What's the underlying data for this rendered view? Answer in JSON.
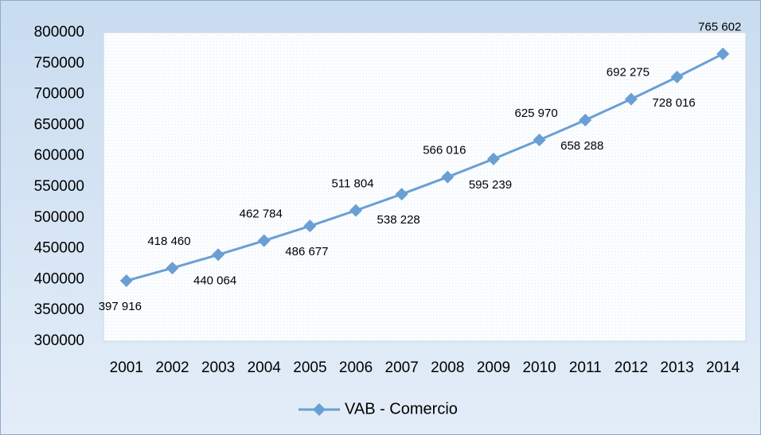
{
  "chart_data": {
    "type": "line",
    "categories": [
      "2001",
      "2002",
      "2003",
      "2004",
      "2005",
      "2006",
      "2007",
      "2008",
      "2009",
      "2010",
      "2011",
      "2012",
      "2013",
      "2014"
    ],
    "series": [
      {
        "name": "VAB - Comercio",
        "color": "#6a9fd4",
        "values": [
          397916,
          418460,
          440064,
          462784,
          486677,
          511804,
          538228,
          566016,
          595239,
          625970,
          658288,
          692275,
          728016,
          765602
        ],
        "value_labels": [
          "397 916",
          "418 460",
          "440 064",
          "462 784",
          "486 677",
          "511 804",
          "538 228",
          "566 016",
          "595 239",
          "625 970",
          "658 288",
          "692 275",
          "728 016",
          "765 602"
        ]
      }
    ],
    "ylim": [
      300000,
      800000
    ],
    "yticks": [
      300000,
      350000,
      400000,
      450000,
      500000,
      550000,
      600000,
      650000,
      700000,
      750000,
      800000
    ],
    "grid": false,
    "legend": "bottom"
  }
}
